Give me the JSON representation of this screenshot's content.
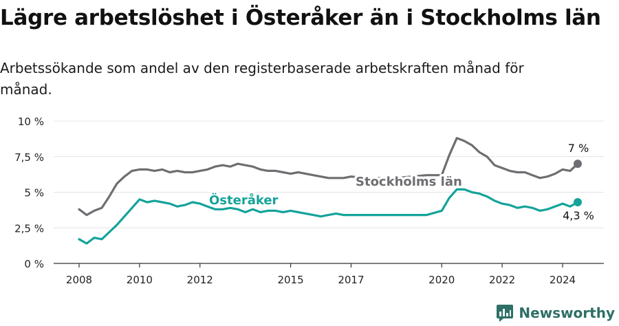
{
  "title": "Lägre arbetslöshet i Österåker än i Stockholms län",
  "subtitle": "Arbetssökande som andel av den registerbaserade arbetskraften månad för månad.",
  "brand": "Newsworthy",
  "colors": {
    "stockholm": "#6d6e71",
    "osteraker": "#14a39a",
    "axis": "#333333",
    "grid": "#e4e4e4",
    "brand": "#2e6f66"
  },
  "chart_data": {
    "type": "line",
    "title": "Lägre arbetslöshet i Österåker än i Stockholms län",
    "xlabel": "",
    "ylabel": "",
    "xlim": [
      2008,
      2025.5
    ],
    "ylim": [
      0,
      10
    ],
    "y_ticks": [
      0,
      2.5,
      5,
      7.5,
      10
    ],
    "y_tick_labels": [
      "0 %",
      "2,5 %",
      "5 %",
      "7,5 %",
      "10 %"
    ],
    "x_ticks": [
      2008,
      2010,
      2012,
      2015,
      2017,
      2020,
      2022,
      2024
    ],
    "x_tick_labels": [
      "2008",
      "2010",
      "2012",
      "2015",
      "2017",
      "2020",
      "2022",
      "2024"
    ],
    "series": [
      {
        "name": "Stockholms län",
        "label": "Stockholms län",
        "end_label": "7 %",
        "x": [
          2008,
          2008.25,
          2008.5,
          2008.75,
          2009,
          2009.25,
          2009.5,
          2009.75,
          2010,
          2010.25,
          2010.5,
          2010.75,
          2011,
          2011.25,
          2011.5,
          2011.75,
          2012,
          2012.25,
          2012.5,
          2012.75,
          2013,
          2013.25,
          2013.5,
          2013.75,
          2014,
          2014.25,
          2014.5,
          2014.75,
          2015,
          2015.25,
          2015.5,
          2015.75,
          2016,
          2016.25,
          2016.5,
          2016.75,
          2017,
          2017.5,
          2018,
          2018.5,
          2019,
          2019.5,
          2020,
          2020.25,
          2020.5,
          2020.75,
          2021,
          2021.25,
          2021.5,
          2021.75,
          2022,
          2022.25,
          2022.5,
          2022.75,
          2023,
          2023.25,
          2023.5,
          2023.75,
          2024,
          2024.25,
          2024.5
        ],
        "values": [
          3.8,
          3.4,
          3.7,
          3.9,
          4.7,
          5.6,
          6.1,
          6.5,
          6.6,
          6.6,
          6.5,
          6.6,
          6.4,
          6.5,
          6.4,
          6.4,
          6.5,
          6.6,
          6.8,
          6.9,
          6.8,
          7.0,
          6.9,
          6.8,
          6.6,
          6.5,
          6.5,
          6.4,
          6.3,
          6.4,
          6.3,
          6.2,
          6.1,
          6.0,
          6.0,
          6.0,
          6.1,
          6.0,
          6.0,
          6.0,
          6.1,
          6.2,
          6.2,
          7.6,
          8.8,
          8.6,
          8.3,
          7.8,
          7.5,
          6.9,
          6.7,
          6.5,
          6.4,
          6.4,
          6.2,
          6.0,
          6.1,
          6.3,
          6.6,
          6.5,
          7.0
        ]
      },
      {
        "name": "Österåker",
        "label": "Österåker",
        "end_label": "4,3 %",
        "x": [
          2008,
          2008.25,
          2008.5,
          2008.75,
          2009,
          2009.25,
          2009.5,
          2009.75,
          2010,
          2010.25,
          2010.5,
          2010.75,
          2011,
          2011.25,
          2011.5,
          2011.75,
          2012,
          2012.25,
          2012.5,
          2012.75,
          2013,
          2013.25,
          2013.5,
          2013.75,
          2014,
          2014.25,
          2014.5,
          2014.75,
          2015,
          2015.25,
          2015.5,
          2015.75,
          2016,
          2016.25,
          2016.5,
          2016.75,
          2017,
          2017.5,
          2018,
          2018.5,
          2019,
          2019.5,
          2020,
          2020.25,
          2020.5,
          2020.75,
          2021,
          2021.25,
          2021.5,
          2021.75,
          2022,
          2022.25,
          2022.5,
          2022.75,
          2023,
          2023.25,
          2023.5,
          2023.75,
          2024,
          2024.25,
          2024.5
        ],
        "values": [
          1.7,
          1.4,
          1.8,
          1.7,
          2.2,
          2.7,
          3.3,
          3.9,
          4.5,
          4.3,
          4.4,
          4.3,
          4.2,
          4.0,
          4.1,
          4.3,
          4.2,
          4.0,
          3.8,
          3.8,
          3.9,
          3.8,
          3.6,
          3.8,
          3.6,
          3.7,
          3.7,
          3.6,
          3.7,
          3.6,
          3.5,
          3.4,
          3.3,
          3.4,
          3.5,
          3.4,
          3.4,
          3.4,
          3.4,
          3.4,
          3.4,
          3.4,
          3.7,
          4.6,
          5.2,
          5.2,
          5.0,
          4.9,
          4.7,
          4.4,
          4.2,
          4.1,
          3.9,
          4.0,
          3.9,
          3.7,
          3.8,
          4.0,
          4.2,
          4.0,
          4.3
        ]
      }
    ]
  }
}
